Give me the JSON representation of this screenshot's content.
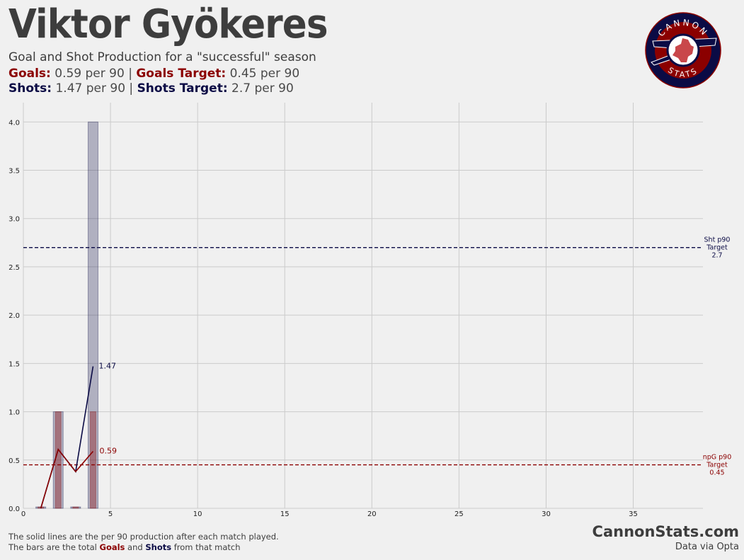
{
  "header": {
    "title": "Viktor Gyökeres",
    "subtitle": "Goal and Shot Production for a \"successful\" season",
    "goals_label": "Goals:",
    "goals_value": "0.59 per 90",
    "goals_target_label": "Goals Target:",
    "goals_target_value": "0.45 per 90",
    "shots_label": "Shots:",
    "shots_value": "1.47 per 90",
    "shots_target_label": "Shots Target:",
    "shots_target_value": "2.7 per 90",
    "separator": "|"
  },
  "logo": {
    "top_text": "CANNON",
    "bottom_text": "STATS"
  },
  "footer": {
    "line1": "The solid lines are the per 90 production after each match played.",
    "line2_prefix": "The bars are the total ",
    "line2_goals": "Goals",
    "line2_and": " and ",
    "line2_shots": "Shots",
    "line2_suffix": " from that match",
    "brand": "CannonStats.com",
    "source": "Data via Opta"
  },
  "colors": {
    "goals": "#8b0000",
    "shots": "#0b0b45",
    "background": "#f0f0f0",
    "grid": "#cbcbcb"
  },
  "chart_data": {
    "type": "bar",
    "x": [
      1,
      2,
      3,
      4
    ],
    "xlim": [
      0,
      39
    ],
    "ylim": [
      0,
      4.2
    ],
    "xticks": [
      0,
      5,
      10,
      15,
      20,
      25,
      30,
      35
    ],
    "yticks": [
      "0.0",
      "0.5",
      "1.0",
      "1.5",
      "2.0",
      "2.5",
      "3.0",
      "3.5",
      "4.0"
    ],
    "grid": true,
    "series": [
      {
        "name": "Shots",
        "kind": "bar",
        "values": [
          0,
          1,
          0,
          4
        ]
      },
      {
        "name": "Goals",
        "kind": "bar",
        "values": [
          0,
          1,
          0,
          1
        ]
      },
      {
        "name": "Shots",
        "kind": "line",
        "x": [
          1,
          2,
          3,
          4
        ],
        "values": [
          0,
          0.61,
          0.38,
          1.47
        ]
      },
      {
        "name": "Goals",
        "kind": "line",
        "x": [
          1,
          2,
          3,
          4
        ],
        "values": [
          0,
          0.61,
          0.38,
          0.59
        ]
      }
    ],
    "end_labels": {
      "shots": "1.47",
      "goals": "0.59"
    },
    "targets": [
      {
        "series": "Shots",
        "value": 2.7,
        "label_lines": [
          "Sht p90",
          "Target",
          "2.7"
        ]
      },
      {
        "series": "Goals",
        "value": 0.45,
        "label_lines": [
          "npG p90",
          "Target",
          "0.45"
        ]
      }
    ]
  }
}
